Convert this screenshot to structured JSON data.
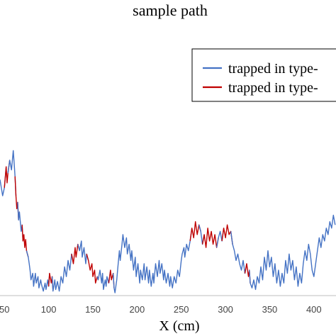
{
  "chart_data": {
    "type": "line",
    "title": "sample path",
    "xlabel": "X (cm)",
    "ylabel": "",
    "xlim": [
      45,
      425
    ],
    "ylim": [
      0,
      100
    ],
    "grid": false,
    "legend_position": "top-right",
    "x_ticks": [
      50,
      100,
      150,
      200,
      250,
      300,
      350,
      400
    ],
    "x_tick_labels": [
      "50",
      "100",
      "150",
      "200",
      "250",
      "300",
      "350",
      "400"
    ],
    "series": [
      {
        "name": "trapped in type-",
        "color": "#4472c4"
      },
      {
        "name": "trapped in type-",
        "color": "#c00000"
      }
    ],
    "points": [
      [
        45,
        70,
        0
      ],
      [
        48,
        60,
        0
      ],
      [
        50,
        65,
        0
      ],
      [
        52,
        78,
        1
      ],
      [
        53,
        68,
        1
      ],
      [
        54,
        74,
        1
      ],
      [
        56,
        82,
        0
      ],
      [
        58,
        76,
        0
      ],
      [
        60,
        88,
        0
      ],
      [
        61,
        80,
        0
      ],
      [
        62,
        72,
        0
      ],
      [
        63,
        60,
        1
      ],
      [
        64,
        52,
        1
      ],
      [
        65,
        56,
        1
      ],
      [
        66,
        45,
        0
      ],
      [
        67,
        50,
        0
      ],
      [
        69,
        38,
        0
      ],
      [
        70,
        42,
        0
      ],
      [
        71,
        32,
        1
      ],
      [
        72,
        36,
        1
      ],
      [
        73,
        28,
        1
      ],
      [
        74,
        33,
        1
      ],
      [
        75,
        26,
        1
      ],
      [
        77,
        22,
        0
      ],
      [
        78,
        18,
        0
      ],
      [
        79,
        14,
        0
      ],
      [
        80,
        8,
        0
      ],
      [
        82,
        12,
        0
      ],
      [
        83,
        4,
        0
      ],
      [
        85,
        12,
        0
      ],
      [
        86,
        6,
        0
      ],
      [
        88,
        10,
        0
      ],
      [
        89,
        3,
        0
      ],
      [
        91,
        8,
        0
      ],
      [
        92,
        5,
        0
      ],
      [
        94,
        1,
        0
      ],
      [
        96,
        6,
        0
      ],
      [
        97,
        2,
        0
      ],
      [
        99,
        8,
        0
      ],
      [
        100,
        4,
        0
      ],
      [
        101,
        12,
        1
      ],
      [
        103,
        6,
        1
      ],
      [
        104,
        10,
        1
      ],
      [
        105,
        1,
        0
      ],
      [
        107,
        8,
        0
      ],
      [
        108,
        2,
        0
      ],
      [
        110,
        7,
        0
      ],
      [
        112,
        1,
        0
      ],
      [
        114,
        10,
        0
      ],
      [
        116,
        6,
        0
      ],
      [
        118,
        16,
        0
      ],
      [
        120,
        10,
        0
      ],
      [
        122,
        20,
        0
      ],
      [
        124,
        14,
        0
      ],
      [
        126,
        24,
        0
      ],
      [
        128,
        18,
        1
      ],
      [
        130,
        28,
        1
      ],
      [
        131,
        22,
        1
      ],
      [
        133,
        30,
        1
      ],
      [
        135,
        26,
        0
      ],
      [
        137,
        32,
        0
      ],
      [
        138,
        22,
        0
      ],
      [
        140,
        28,
        0
      ],
      [
        142,
        18,
        0
      ],
      [
        143,
        24,
        0
      ],
      [
        145,
        20,
        1
      ],
      [
        147,
        14,
        1
      ],
      [
        149,
        18,
        1
      ],
      [
        150,
        10,
        1
      ],
      [
        152,
        14,
        1
      ],
      [
        153,
        6,
        1
      ],
      [
        155,
        10,
        1
      ],
      [
        156,
        8,
        0
      ],
      [
        158,
        14,
        0
      ],
      [
        160,
        6,
        0
      ],
      [
        161,
        12,
        0
      ],
      [
        162,
        2,
        0
      ],
      [
        164,
        8,
        0
      ],
      [
        165,
        4,
        0
      ],
      [
        166,
        10,
        0
      ],
      [
        168,
        6,
        0
      ],
      [
        170,
        14,
        1
      ],
      [
        171,
        8,
        1
      ],
      [
        173,
        12,
        1
      ],
      [
        174,
        3,
        0
      ],
      [
        175,
        0,
        0
      ],
      [
        177,
        8,
        0
      ],
      [
        178,
        14,
        0
      ],
      [
        180,
        26,
        0
      ],
      [
        181,
        20,
        0
      ],
      [
        183,
        30,
        0
      ],
      [
        184,
        36,
        0
      ],
      [
        186,
        28,
        0
      ],
      [
        188,
        34,
        0
      ],
      [
        189,
        24,
        0
      ],
      [
        191,
        30,
        0
      ],
      [
        193,
        20,
        0
      ],
      [
        194,
        26,
        0
      ],
      [
        196,
        14,
        0
      ],
      [
        198,
        22,
        0
      ],
      [
        199,
        10,
        0
      ],
      [
        201,
        18,
        0
      ],
      [
        203,
        6,
        0
      ],
      [
        204,
        14,
        0
      ],
      [
        206,
        8,
        0
      ],
      [
        208,
        18,
        0
      ],
      [
        209,
        8,
        0
      ],
      [
        211,
        16,
        0
      ],
      [
        213,
        6,
        0
      ],
      [
        214,
        14,
        0
      ],
      [
        216,
        4,
        0
      ],
      [
        218,
        12,
        0
      ],
      [
        219,
        6,
        0
      ],
      [
        221,
        18,
        0
      ],
      [
        223,
        10,
        0
      ],
      [
        225,
        20,
        0
      ],
      [
        226,
        12,
        0
      ],
      [
        228,
        18,
        0
      ],
      [
        230,
        8,
        0
      ],
      [
        231,
        14,
        0
      ],
      [
        233,
        6,
        0
      ],
      [
        235,
        12,
        0
      ],
      [
        237,
        4,
        0
      ],
      [
        238,
        10,
        0
      ],
      [
        240,
        3,
        0
      ],
      [
        242,
        10,
        0
      ],
      [
        244,
        6,
        0
      ],
      [
        246,
        14,
        0
      ],
      [
        248,
        10,
        0
      ],
      [
        250,
        20,
        0
      ],
      [
        251,
        24,
        0
      ],
      [
        253,
        28,
        0
      ],
      [
        254,
        22,
        0
      ],
      [
        256,
        30,
        0
      ],
      [
        258,
        26,
        0
      ],
      [
        260,
        32,
        0
      ],
      [
        262,
        40,
        1
      ],
      [
        264,
        34,
        1
      ],
      [
        266,
        44,
        1
      ],
      [
        268,
        36,
        1
      ],
      [
        270,
        42,
        1
      ],
      [
        272,
        38,
        0
      ],
      [
        274,
        30,
        0
      ],
      [
        276,
        36,
        1
      ],
      [
        278,
        28,
        1
      ],
      [
        280,
        40,
        1
      ],
      [
        282,
        32,
        1
      ],
      [
        284,
        38,
        1
      ],
      [
        286,
        30,
        1
      ],
      [
        288,
        36,
        1
      ],
      [
        290,
        28,
        1
      ],
      [
        292,
        34,
        0
      ],
      [
        294,
        38,
        0
      ],
      [
        296,
        32,
        0
      ],
      [
        298,
        40,
        1
      ],
      [
        300,
        34,
        1
      ],
      [
        302,
        42,
        1
      ],
      [
        304,
        36,
        1
      ],
      [
        306,
        38,
        1
      ],
      [
        308,
        30,
        0
      ],
      [
        310,
        26,
        0
      ],
      [
        312,
        20,
        0
      ],
      [
        314,
        24,
        0
      ],
      [
        316,
        18,
        0
      ],
      [
        318,
        14,
        0
      ],
      [
        320,
        20,
        0
      ],
      [
        322,
        12,
        0
      ],
      [
        324,
        18,
        1
      ],
      [
        326,
        10,
        1
      ],
      [
        327,
        14,
        1
      ],
      [
        328,
        6,
        0
      ],
      [
        330,
        3,
        0
      ],
      [
        332,
        8,
        0
      ],
      [
        334,
        2,
        0
      ],
      [
        336,
        10,
        0
      ],
      [
        338,
        6,
        0
      ],
      [
        340,
        16,
        0
      ],
      [
        342,
        8,
        0
      ],
      [
        344,
        22,
        0
      ],
      [
        346,
        14,
        0
      ],
      [
        348,
        26,
        0
      ],
      [
        350,
        16,
        0
      ],
      [
        352,
        22,
        0
      ],
      [
        354,
        10,
        0
      ],
      [
        356,
        18,
        0
      ],
      [
        358,
        6,
        0
      ],
      [
        360,
        14,
        0
      ],
      [
        362,
        4,
        0
      ],
      [
        364,
        12,
        0
      ],
      [
        366,
        6,
        0
      ],
      [
        368,
        20,
        0
      ],
      [
        370,
        12,
        0
      ],
      [
        372,
        24,
        0
      ],
      [
        374,
        14,
        0
      ],
      [
        376,
        20,
        0
      ],
      [
        378,
        8,
        0
      ],
      [
        380,
        16,
        0
      ],
      [
        382,
        4,
        0
      ],
      [
        384,
        12,
        0
      ],
      [
        386,
        6,
        0
      ],
      [
        388,
        18,
        0
      ],
      [
        390,
        26,
        0
      ],
      [
        392,
        20,
        0
      ],
      [
        394,
        30,
        0
      ],
      [
        396,
        24,
        0
      ],
      [
        398,
        14,
        0
      ],
      [
        400,
        10,
        0
      ],
      [
        402,
        18,
        0
      ],
      [
        404,
        26,
        0
      ],
      [
        406,
        34,
        0
      ],
      [
        408,
        28,
        0
      ],
      [
        410,
        36,
        0
      ],
      [
        412,
        32,
        0
      ],
      [
        414,
        40,
        0
      ],
      [
        416,
        36,
        0
      ],
      [
        418,
        44,
        0
      ],
      [
        420,
        40,
        0
      ],
      [
        422,
        48,
        0
      ],
      [
        424,
        42,
        0
      ]
    ]
  }
}
